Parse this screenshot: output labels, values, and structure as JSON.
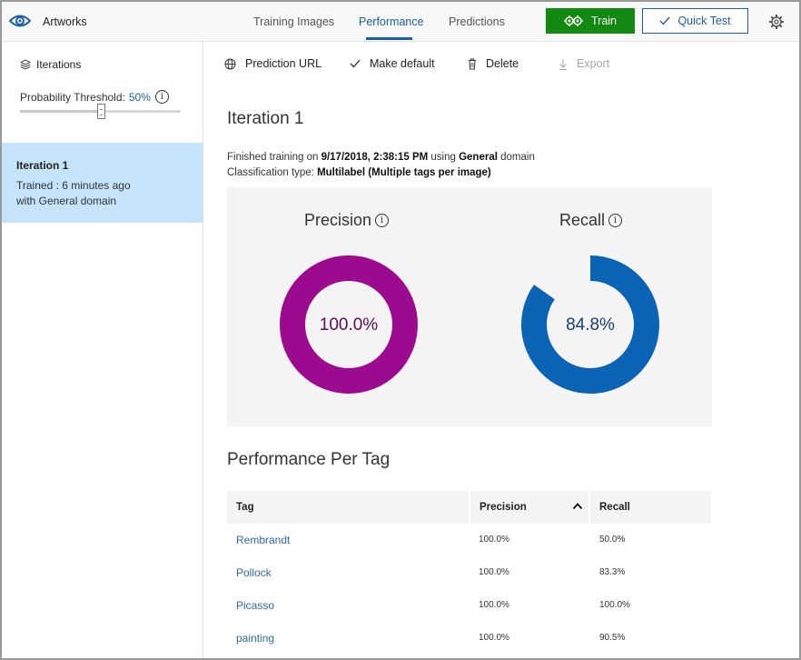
{
  "header": {
    "app_title": "Artworks",
    "tabs": [
      {
        "label": "Training Images"
      },
      {
        "label": "Performance"
      },
      {
        "label": "Predictions"
      }
    ],
    "active_tab": "Performance",
    "train_label": "Train",
    "quick_test_label": "Quick Test",
    "accent_color": "#1b5fa6",
    "train_color": "#128a12"
  },
  "sidebar": {
    "iterations_label": "Iterations",
    "threshold_label": "Probability Threshold:",
    "threshold_value": "50%",
    "threshold_fraction": 0.5,
    "selected_iteration": {
      "title": "Iteration 1",
      "trained": "Trained : 6 minutes ago",
      "domain": "with General domain"
    }
  },
  "toolbar": {
    "prediction_url": "Prediction URL",
    "make_default": "Make default",
    "delete": "Delete",
    "export": "Export"
  },
  "main": {
    "title": "Iteration 1",
    "line1": {
      "prefix": "Finished training on ",
      "date": "9/17/2018, 2:38:15 PM",
      "middle": " using ",
      "domain": "General",
      "suffix": " domain"
    },
    "line2": {
      "prefix": "Classification type: ",
      "type": "Multilabel (Multiple tags per image)"
    },
    "precision": {
      "label": "Precision",
      "value_text": "100.0%",
      "value": 100.0,
      "color": "#9b0a8f"
    },
    "recall": {
      "label": "Recall",
      "value_text": "84.8%",
      "value": 84.8,
      "color": "#0a63b5"
    },
    "per_tag_title": "Performance Per Tag",
    "table": {
      "headers": {
        "tag": "Tag",
        "precision": "Precision",
        "recall": "Recall"
      },
      "rows": [
        {
          "tag": "Rembrandt",
          "precision": "100.0%",
          "recall": "50.0%"
        },
        {
          "tag": "Pollock",
          "precision": "100.0%",
          "recall": "83.3%"
        },
        {
          "tag": "Picasso",
          "precision": "100.0%",
          "recall": "100.0%"
        },
        {
          "tag": "painting",
          "precision": "100.0%",
          "recall": "90.5%"
        }
      ]
    }
  }
}
